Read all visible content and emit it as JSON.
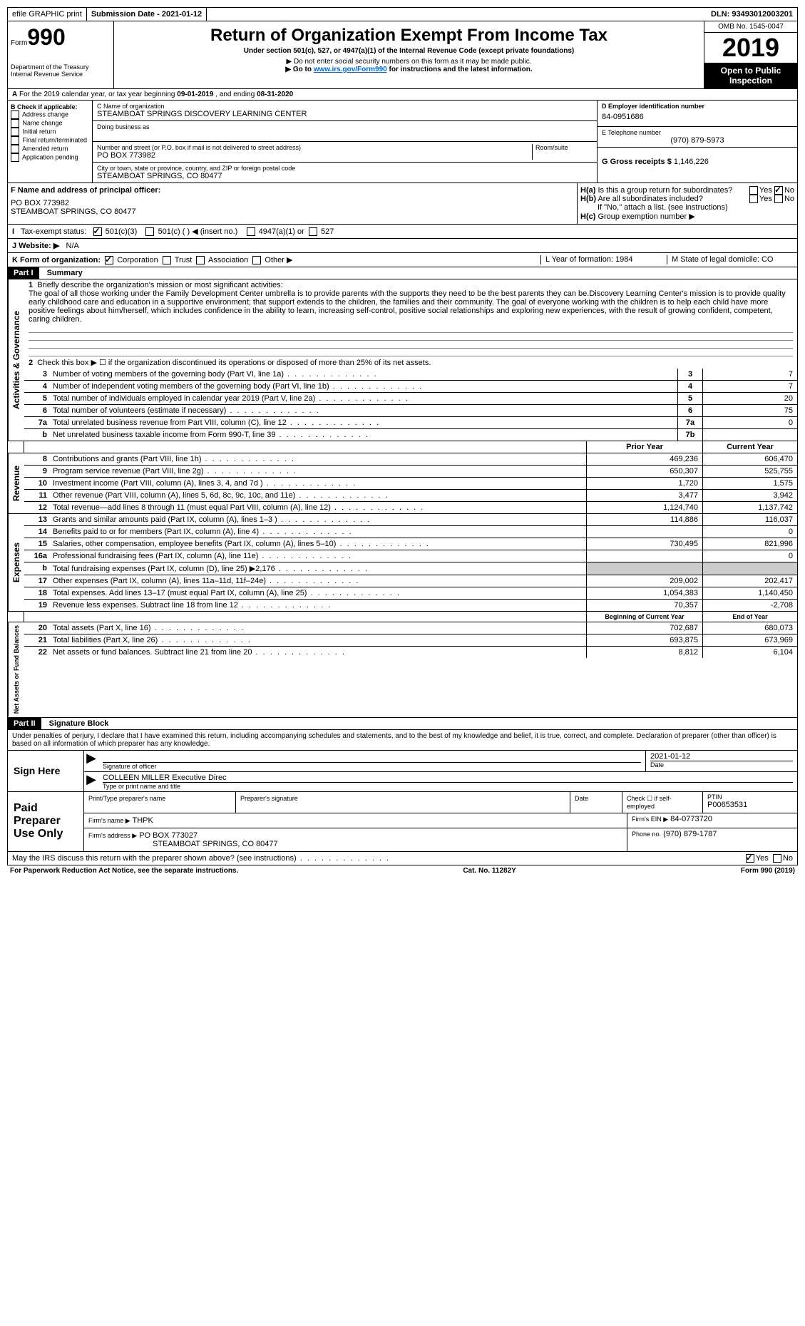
{
  "topbar": {
    "efile": "efile GRAPHIC print",
    "submission": "Submission Date - 2021-01-12",
    "dln": "DLN: 93493012003201"
  },
  "header": {
    "form_prefix": "Form",
    "form_num": "990",
    "dept": "Department of the Treasury Internal Revenue Service",
    "title": "Return of Organization Exempt From Income Tax",
    "subtitle": "Under section 501(c), 527, or 4947(a)(1) of the Internal Revenue Code (except private foundations)",
    "note1": "▶ Do not enter social security numbers on this form as it may be made public.",
    "note2_pre": "▶ Go to",
    "note2_link": "www.irs.gov/Form990",
    "note2_post": "for instructions and the latest information.",
    "omb": "OMB No. 1545-0047",
    "year": "2019",
    "open": "Open to Public Inspection"
  },
  "lineA": {
    "text_pre": "For the 2019 calendar year, or tax year beginning",
    "begin": "09-01-2019",
    "mid": ", and ending",
    "end": "08-31-2020"
  },
  "sectionB": {
    "label": "B Check if applicable:",
    "opts": [
      "Address change",
      "Name change",
      "Initial return",
      "Final return/terminated",
      "Amended return",
      "Application pending"
    ]
  },
  "sectionC": {
    "name_label": "C Name of organization",
    "name": "STEAMBOAT SPRINGS DISCOVERY LEARNING CENTER",
    "dba_label": "Doing business as",
    "addr_label": "Number and street (or P.O. box if mail is not delivered to street address)",
    "addr": "PO BOX 773982",
    "room_label": "Room/suite",
    "city_label": "City or town, state or province, country, and ZIP or foreign postal code",
    "city": "STEAMBOAT SPRINGS, CO  80477"
  },
  "sectionD": {
    "label": "D Employer identification number",
    "ein": "84-0951686",
    "tel_label": "E Telephone number",
    "tel": "(970) 879-5973",
    "gross_label": "G Gross receipts $",
    "gross": "1,146,226"
  },
  "sectionF": {
    "label": "F Name and address of principal officer:",
    "line1": "PO BOX 773982",
    "line2": "STEAMBOAT SPRINGS, CO  80477"
  },
  "sectionH": {
    "ha": "Is this a group return for subordinates?",
    "hb": "Are all subordinates included?",
    "hb_note": "If \"No,\" attach a list. (see instructions)",
    "hc": "Group exemption number ▶"
  },
  "rowI": {
    "label": "Tax-exempt status:",
    "opt1": "501(c)(3)",
    "opt2": "501(c) (  ) ◀ (insert no.)",
    "opt3": "4947(a)(1) or",
    "opt4": "527"
  },
  "rowJ": {
    "label": "J  Website: ▶",
    "val": "N/A"
  },
  "rowK": {
    "label": "K Form of organization:",
    "opts": [
      "Corporation",
      "Trust",
      "Association",
      "Other ▶"
    ],
    "L": "L Year of formation: 1984",
    "M": "M State of legal domicile: CO"
  },
  "part1": {
    "num": "Part I",
    "title": "Summary"
  },
  "act": {
    "label": "Activities & Governance",
    "l1": "Briefly describe the organization's mission or most significant activities:",
    "mission": "The goal of all those working under the Family Development Center umbrella is to provide parents with the supports they need to be the best parents they can be.Discovery Learning Center's mission is to provide quality early childhood care and education in a supportive environment; that support extends to the children, the families and their community. The goal of everyone working with the children is to help each child have more positive feelings about him/herself, which includes confidence in the ability to learn, increasing self-control, positive social relationships and exploring new experiences, with the result of growing confident, competent, caring children.",
    "l2": "Check this box ▶ ☐ if the organization discontinued its operations or disposed of more than 25% of its net assets.",
    "lines": [
      {
        "n": "3",
        "t": "Number of voting members of the governing body (Part VI, line 1a)",
        "b": "3",
        "v": "7"
      },
      {
        "n": "4",
        "t": "Number of independent voting members of the governing body (Part VI, line 1b)",
        "b": "4",
        "v": "7"
      },
      {
        "n": "5",
        "t": "Total number of individuals employed in calendar year 2019 (Part V, line 2a)",
        "b": "5",
        "v": "20"
      },
      {
        "n": "6",
        "t": "Total number of volunteers (estimate if necessary)",
        "b": "6",
        "v": "75"
      },
      {
        "n": "7a",
        "t": "Total unrelated business revenue from Part VIII, column (C), line 12",
        "b": "7a",
        "v": "0"
      },
      {
        "n": "b",
        "t": "Net unrelated business taxable income from Form 990-T, line 39",
        "b": "7b",
        "v": ""
      }
    ]
  },
  "rev": {
    "label": "Revenue",
    "hdr_prior": "Prior Year",
    "hdr_curr": "Current Year",
    "lines": [
      {
        "n": "8",
        "t": "Contributions and grants (Part VIII, line 1h)",
        "p": "469,236",
        "c": "606,470"
      },
      {
        "n": "9",
        "t": "Program service revenue (Part VIII, line 2g)",
        "p": "650,307",
        "c": "525,755"
      },
      {
        "n": "10",
        "t": "Investment income (Part VIII, column (A), lines 3, 4, and 7d )",
        "p": "1,720",
        "c": "1,575"
      },
      {
        "n": "11",
        "t": "Other revenue (Part VIII, column (A), lines 5, 6d, 8c, 9c, 10c, and 11e)",
        "p": "3,477",
        "c": "3,942"
      },
      {
        "n": "12",
        "t": "Total revenue—add lines 8 through 11 (must equal Part VIII, column (A), line 12)",
        "p": "1,124,740",
        "c": "1,137,742"
      }
    ]
  },
  "exp": {
    "label": "Expenses",
    "lines": [
      {
        "n": "13",
        "t": "Grants and similar amounts paid (Part IX, column (A), lines 1–3 )",
        "p": "114,886",
        "c": "116,037"
      },
      {
        "n": "14",
        "t": "Benefits paid to or for members (Part IX, column (A), line 4)",
        "p": "",
        "c": "0"
      },
      {
        "n": "15",
        "t": "Salaries, other compensation, employee benefits (Part IX, column (A), lines 5–10)",
        "p": "730,495",
        "c": "821,996"
      },
      {
        "n": "16a",
        "t": "Professional fundraising fees (Part IX, column (A), line 11e)",
        "p": "",
        "c": "0"
      },
      {
        "n": "b",
        "t": "Total fundraising expenses (Part IX, column (D), line 25) ▶2,176",
        "p": "grey",
        "c": "grey"
      },
      {
        "n": "17",
        "t": "Other expenses (Part IX, column (A), lines 11a–11d, 11f–24e)",
        "p": "209,002",
        "c": "202,417"
      },
      {
        "n": "18",
        "t": "Total expenses. Add lines 13–17 (must equal Part IX, column (A), line 25)",
        "p": "1,054,383",
        "c": "1,140,450"
      },
      {
        "n": "19",
        "t": "Revenue less expenses. Subtract line 18 from line 12",
        "p": "70,357",
        "c": "-2,708"
      }
    ]
  },
  "net": {
    "label": "Net Assets or Fund Balances",
    "hdr_prior": "Beginning of Current Year",
    "hdr_curr": "End of Year",
    "lines": [
      {
        "n": "20",
        "t": "Total assets (Part X, line 16)",
        "p": "702,687",
        "c": "680,073"
      },
      {
        "n": "21",
        "t": "Total liabilities (Part X, line 26)",
        "p": "693,875",
        "c": "673,969"
      },
      {
        "n": "22",
        "t": "Net assets or fund balances. Subtract line 21 from line 20",
        "p": "8,812",
        "c": "6,104"
      }
    ]
  },
  "part2": {
    "num": "Part II",
    "title": "Signature Block"
  },
  "sig": {
    "perjury": "Under penalties of perjury, I declare that I have examined this return, including accompanying schedules and statements, and to the best of my knowledge and belief, it is true, correct, and complete. Declaration of preparer (other than officer) is based on all information of which preparer has any knowledge.",
    "sign_here": "Sign Here",
    "sig_officer": "Signature of officer",
    "date": "Date",
    "date_val": "2021-01-12",
    "name": "COLLEEN MILLER  Executive Direc",
    "name_label": "Type or print name and title"
  },
  "prep": {
    "label": "Paid Preparer Use Only",
    "h1": "Print/Type preparer's name",
    "h2": "Preparer's signature",
    "h3": "Date",
    "h4": "Check ☐ if self-employed",
    "h5_label": "PTIN",
    "h5": "P00653531",
    "firm_label": "Firm's name    ▶",
    "firm": "THPK",
    "ein_label": "Firm's EIN ▶",
    "ein": "84-0773720",
    "addr_label": "Firm's address ▶",
    "addr1": "PO BOX 773027",
    "addr2": "STEAMBOAT SPRINGS, CO  80477",
    "phone_label": "Phone no.",
    "phone": "(970) 879-1787"
  },
  "discuss": "May the IRS discuss this return with the preparer shown above? (see instructions)",
  "footer": {
    "left": "For Paperwork Reduction Act Notice, see the separate instructions.",
    "mid": "Cat. No. 11282Y",
    "right": "Form 990 (2019)"
  },
  "yn": {
    "yes": "Yes",
    "no": "No"
  }
}
